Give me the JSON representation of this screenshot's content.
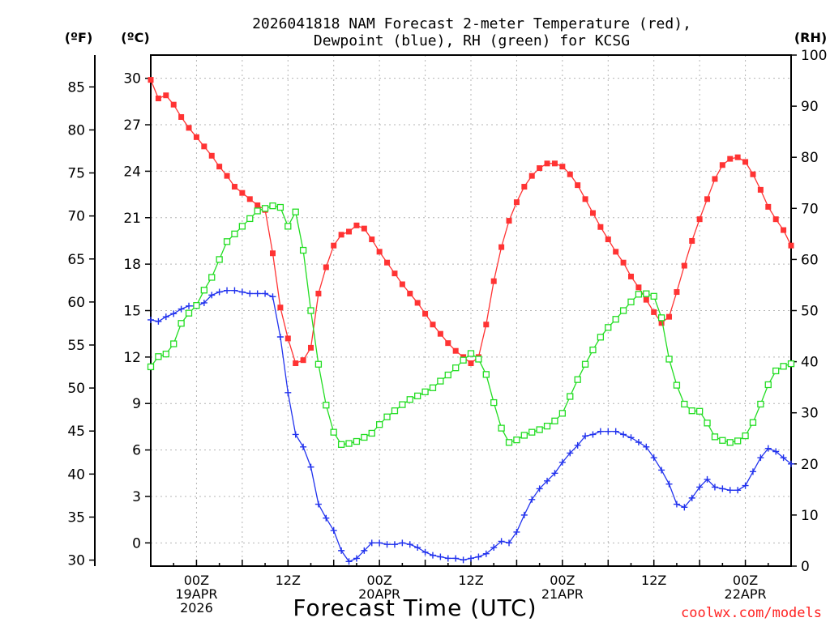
{
  "chart_data": {
    "type": "line",
    "title_line1": "2026041818 NAM Forecast 2-meter Temperature (red),",
    "title_line2": "Dewpoint (blue), RH (green) for KCSG",
    "xlabel": "Forecast Time (UTC)",
    "watermark": "coolwx.com/models",
    "units": {
      "f": "(ºF)",
      "c": "(ºC)",
      "rh": "(RH)"
    },
    "x_range_hours": [
      -6,
      78
    ],
    "x_ticks": [
      {
        "hour": 0,
        "labels": [
          "00Z",
          "19APR",
          "2026"
        ]
      },
      {
        "hour": 12,
        "labels": [
          "12Z"
        ]
      },
      {
        "hour": 24,
        "labels": [
          "00Z",
          "20APR"
        ]
      },
      {
        "hour": 36,
        "labels": [
          "12Z"
        ]
      },
      {
        "hour": 48,
        "labels": [
          "00Z",
          "21APR"
        ]
      },
      {
        "hour": 60,
        "labels": [
          "12Z"
        ]
      },
      {
        "hour": 72,
        "labels": [
          "00Z",
          "22APR"
        ]
      }
    ],
    "celsius_axis": {
      "range": [
        -1.5,
        31.5
      ],
      "ticks": [
        0,
        3,
        6,
        9,
        12,
        15,
        18,
        21,
        24,
        27,
        30
      ]
    },
    "fahrenheit_axis": {
      "ticks": [
        30,
        35,
        40,
        45,
        50,
        55,
        60,
        65,
        70,
        75,
        80,
        85
      ]
    },
    "rh_axis": {
      "range": [
        0,
        100
      ],
      "ticks": [
        0,
        10,
        20,
        30,
        40,
        50,
        60,
        70,
        80,
        90,
        100
      ]
    },
    "series": [
      {
        "name": "Temperature",
        "units": "C",
        "color": "#ff3333",
        "marker": "filled-square",
        "points": [
          [
            -6,
            29.9
          ],
          [
            -5,
            28.7
          ],
          [
            -4,
            28.9
          ],
          [
            -3,
            28.3
          ],
          [
            -2,
            27.5
          ],
          [
            -1,
            26.8
          ],
          [
            0,
            26.2
          ],
          [
            1,
            25.6
          ],
          [
            2,
            25
          ],
          [
            3,
            24.3
          ],
          [
            4,
            23.7
          ],
          [
            5,
            23
          ],
          [
            6,
            22.6
          ],
          [
            7,
            22.2
          ],
          [
            8,
            21.8
          ],
          [
            9,
            21.5
          ],
          [
            10,
            18.7
          ],
          [
            11,
            15.2
          ],
          [
            12,
            13.2
          ],
          [
            13,
            11.6
          ],
          [
            14,
            11.8
          ],
          [
            15,
            12.6
          ],
          [
            16,
            16.1
          ],
          [
            17,
            17.8
          ],
          [
            18,
            19.2
          ],
          [
            19,
            19.9
          ],
          [
            20,
            20.1
          ],
          [
            21,
            20.5
          ],
          [
            22,
            20.3
          ],
          [
            23,
            19.6
          ],
          [
            24,
            18.8
          ],
          [
            25,
            18.1
          ],
          [
            26,
            17.4
          ],
          [
            27,
            16.7
          ],
          [
            28,
            16.1
          ],
          [
            29,
            15.5
          ],
          [
            30,
            14.8
          ],
          [
            31,
            14.1
          ],
          [
            32,
            13.5
          ],
          [
            33,
            12.9
          ],
          [
            34,
            12.4
          ],
          [
            35,
            12
          ],
          [
            36,
            11.6
          ],
          [
            37,
            12
          ],
          [
            38,
            14.1
          ],
          [
            39,
            16.9
          ],
          [
            40,
            19.1
          ],
          [
            41,
            20.8
          ],
          [
            42,
            22
          ],
          [
            43,
            23
          ],
          [
            44,
            23.7
          ],
          [
            45,
            24.2
          ],
          [
            46,
            24.5
          ],
          [
            47,
            24.5
          ],
          [
            48,
            24.3
          ],
          [
            49,
            23.8
          ],
          [
            50,
            23.1
          ],
          [
            51,
            22.2
          ],
          [
            52,
            21.3
          ],
          [
            53,
            20.4
          ],
          [
            54,
            19.6
          ],
          [
            55,
            18.8
          ],
          [
            56,
            18.1
          ],
          [
            57,
            17.2
          ],
          [
            58,
            16.5
          ],
          [
            59,
            15.7
          ],
          [
            60,
            14.9
          ],
          [
            61,
            14.2
          ],
          [
            62,
            14.6
          ],
          [
            63,
            16.2
          ],
          [
            64,
            17.9
          ],
          [
            65,
            19.5
          ],
          [
            66,
            20.9
          ],
          [
            67,
            22.2
          ],
          [
            68,
            23.5
          ],
          [
            69,
            24.4
          ],
          [
            70,
            24.8
          ],
          [
            71,
            24.9
          ],
          [
            72,
            24.6
          ],
          [
            73,
            23.8
          ],
          [
            74,
            22.8
          ],
          [
            75,
            21.7
          ],
          [
            76,
            20.9
          ],
          [
            77,
            20.2
          ],
          [
            78,
            19.2
          ]
        ]
      },
      {
        "name": "Dewpoint",
        "units": "C",
        "color": "#2233ee",
        "marker": "plus",
        "points": [
          [
            -6,
            14.4
          ],
          [
            -5,
            14.3
          ],
          [
            -4,
            14.6
          ],
          [
            -3,
            14.8
          ],
          [
            -2,
            15.1
          ],
          [
            -1,
            15.3
          ],
          [
            0,
            15.3
          ],
          [
            1,
            15.5
          ],
          [
            2,
            16
          ],
          [
            3,
            16.2
          ],
          [
            4,
            16.3
          ],
          [
            5,
            16.3
          ],
          [
            6,
            16.2
          ],
          [
            7,
            16.1
          ],
          [
            8,
            16.1
          ],
          [
            9,
            16.1
          ],
          [
            10,
            15.9
          ],
          [
            11,
            13.3
          ],
          [
            12,
            9.7
          ],
          [
            13,
            7
          ],
          [
            14,
            6.2
          ],
          [
            15,
            4.9
          ],
          [
            16,
            2.5
          ],
          [
            17,
            1.6
          ],
          [
            18,
            0.8
          ],
          [
            19,
            -0.5
          ],
          [
            20,
            -1.2
          ],
          [
            21,
            -1
          ],
          [
            22,
            -0.5
          ],
          [
            23,
            0
          ],
          [
            24,
            0
          ],
          [
            25,
            -0.1
          ],
          [
            26,
            -0.1
          ],
          [
            27,
            0
          ],
          [
            28,
            -0.1
          ],
          [
            29,
            -0.3
          ],
          [
            30,
            -0.6
          ],
          [
            31,
            -0.8
          ],
          [
            32,
            -0.9
          ],
          [
            33,
            -1
          ],
          [
            34,
            -1
          ],
          [
            35,
            -1.1
          ],
          [
            36,
            -1
          ],
          [
            37,
            -0.9
          ],
          [
            38,
            -0.7
          ],
          [
            39,
            -0.3
          ],
          [
            40,
            0.1
          ],
          [
            41,
            0
          ],
          [
            42,
            0.7
          ],
          [
            43,
            1.8
          ],
          [
            44,
            2.8
          ],
          [
            45,
            3.5
          ],
          [
            46,
            4
          ],
          [
            47,
            4.5
          ],
          [
            48,
            5.2
          ],
          [
            49,
            5.8
          ],
          [
            50,
            6.3
          ],
          [
            51,
            6.9
          ],
          [
            52,
            7
          ],
          [
            53,
            7.2
          ],
          [
            54,
            7.2
          ],
          [
            55,
            7.2
          ],
          [
            56,
            7
          ],
          [
            57,
            6.8
          ],
          [
            58,
            6.5
          ],
          [
            59,
            6.2
          ],
          [
            60,
            5.5
          ],
          [
            61,
            4.7
          ],
          [
            62,
            3.8
          ],
          [
            63,
            2.5
          ],
          [
            64,
            2.3
          ],
          [
            65,
            2.9
          ],
          [
            66,
            3.6
          ],
          [
            67,
            4.1
          ],
          [
            68,
            3.6
          ],
          [
            69,
            3.5
          ],
          [
            70,
            3.4
          ],
          [
            71,
            3.4
          ],
          [
            72,
            3.7
          ],
          [
            73,
            4.6
          ],
          [
            74,
            5.5
          ],
          [
            75,
            6.1
          ],
          [
            76,
            5.9
          ],
          [
            77,
            5.5
          ],
          [
            78,
            5.1
          ]
        ]
      },
      {
        "name": "Relative Humidity",
        "units": "%",
        "color": "#22dd22",
        "marker": "open-square",
        "points": [
          [
            -6,
            39
          ],
          [
            -5,
            41
          ],
          [
            -4,
            41.5
          ],
          [
            -3,
            43.5
          ],
          [
            -2,
            47.5
          ],
          [
            -1,
            49.5
          ],
          [
            0,
            51
          ],
          [
            1,
            54
          ],
          [
            2,
            56.5
          ],
          [
            3,
            60
          ],
          [
            4,
            63.5
          ],
          [
            5,
            65
          ],
          [
            6,
            66.5
          ],
          [
            7,
            68
          ],
          [
            8,
            69.5
          ],
          [
            9,
            70
          ],
          [
            10,
            70.5
          ],
          [
            11,
            70.2
          ],
          [
            12,
            66.5
          ],
          [
            13,
            69.3
          ],
          [
            14,
            61.8
          ],
          [
            15,
            50
          ],
          [
            16,
            39.5
          ],
          [
            17,
            31.5
          ],
          [
            18,
            26.2
          ],
          [
            19,
            23.8
          ],
          [
            20,
            24
          ],
          [
            21,
            24.4
          ],
          [
            22,
            25.2
          ],
          [
            23,
            26
          ],
          [
            24,
            27.7
          ],
          [
            25,
            29.2
          ],
          [
            26,
            30.4
          ],
          [
            27,
            31.6
          ],
          [
            28,
            32.6
          ],
          [
            29,
            33.3
          ],
          [
            30,
            34.1
          ],
          [
            31,
            34.9
          ],
          [
            32,
            36.2
          ],
          [
            33,
            37.4
          ],
          [
            34,
            38.8
          ],
          [
            35,
            40.3
          ],
          [
            36,
            41.6
          ],
          [
            37,
            40.5
          ],
          [
            38,
            37.5
          ],
          [
            39,
            32
          ],
          [
            40,
            27
          ],
          [
            41,
            24.2
          ],
          [
            42,
            24.7
          ],
          [
            43,
            25.6
          ],
          [
            44,
            26.2
          ],
          [
            45,
            26.7
          ],
          [
            46,
            27.4
          ],
          [
            47,
            28.4
          ],
          [
            48,
            29.9
          ],
          [
            49,
            33.2
          ],
          [
            50,
            36.5
          ],
          [
            51,
            39.5
          ],
          [
            52,
            42.3
          ],
          [
            53,
            44.8
          ],
          [
            54,
            46.7
          ],
          [
            55,
            48.3
          ],
          [
            56,
            50
          ],
          [
            57,
            51.7
          ],
          [
            58,
            53.2
          ],
          [
            59,
            53.3
          ],
          [
            60,
            52.8
          ],
          [
            61,
            48.6
          ],
          [
            62,
            40.5
          ],
          [
            63,
            35.4
          ],
          [
            64,
            31.7
          ],
          [
            65,
            30.4
          ],
          [
            66,
            30.3
          ],
          [
            67,
            28
          ],
          [
            68,
            25.3
          ],
          [
            69,
            24.6
          ],
          [
            70,
            24.2
          ],
          [
            71,
            24.5
          ],
          [
            72,
            25.5
          ],
          [
            73,
            28.1
          ],
          [
            74,
            31.7
          ],
          [
            75,
            35.5
          ],
          [
            76,
            38.2
          ],
          [
            77,
            39.1
          ],
          [
            78,
            39.6
          ]
        ]
      }
    ]
  }
}
